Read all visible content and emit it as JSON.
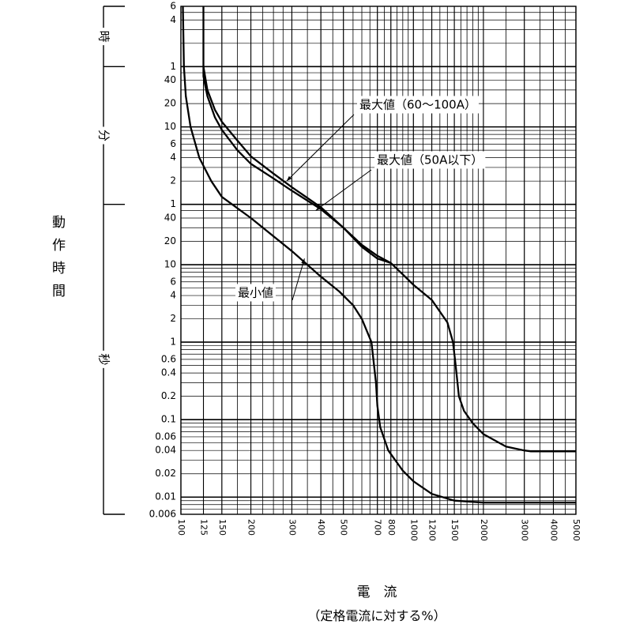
{
  "chart_data": {
    "type": "line",
    "y_axis_label": "動作時間",
    "x_axis_label": "電　流",
    "x_axis_sublabel": "（定格電流に対する%）",
    "x_scale": "log",
    "y_scale": "log",
    "xlim": [
      100,
      5000
    ],
    "ylim_seconds": [
      0.006,
      21600
    ],
    "grid": true,
    "x_ticks": [
      {
        "value": 100,
        "label": "100"
      },
      {
        "value": 125,
        "label": "125"
      },
      {
        "value": 150,
        "label": "150"
      },
      {
        "value": 200,
        "label": "200"
      },
      {
        "value": 300,
        "label": "300"
      },
      {
        "value": 400,
        "label": "400"
      },
      {
        "value": 500,
        "label": "500"
      },
      {
        "value": 700,
        "label": "700"
      },
      {
        "value": 800,
        "label": "800"
      },
      {
        "value": 1000,
        "label": "1000"
      },
      {
        "value": 1200,
        "label": "1200"
      },
      {
        "value": 1500,
        "label": "1500"
      },
      {
        "value": 2000,
        "label": "2000"
      },
      {
        "value": 3000,
        "label": "3000"
      },
      {
        "value": 4000,
        "label": "4000"
      },
      {
        "value": 5000,
        "label": "5000"
      }
    ],
    "y_ticks": [
      {
        "seconds": 21600,
        "label": "6"
      },
      {
        "seconds": 14400,
        "label": "4"
      },
      {
        "seconds": 3600,
        "label": "1"
      },
      {
        "seconds": 2400,
        "label": "40"
      },
      {
        "seconds": 1200,
        "label": "20"
      },
      {
        "seconds": 600,
        "label": "10"
      },
      {
        "seconds": 360,
        "label": "6"
      },
      {
        "seconds": 240,
        "label": "4"
      },
      {
        "seconds": 120,
        "label": "2"
      },
      {
        "seconds": 60,
        "label": "1"
      },
      {
        "seconds": 40,
        "label": "40"
      },
      {
        "seconds": 20,
        "label": "20"
      },
      {
        "seconds": 10,
        "label": "10"
      },
      {
        "seconds": 6,
        "label": "6"
      },
      {
        "seconds": 4,
        "label": "4"
      },
      {
        "seconds": 2,
        "label": "2"
      },
      {
        "seconds": 1,
        "label": "1"
      },
      {
        "seconds": 0.6,
        "label": "0.6"
      },
      {
        "seconds": 0.4,
        "label": "0.4"
      },
      {
        "seconds": 0.2,
        "label": "0.2"
      },
      {
        "seconds": 0.1,
        "label": "0.1"
      },
      {
        "seconds": 0.06,
        "label": "0.06"
      },
      {
        "seconds": 0.04,
        "label": "0.04"
      },
      {
        "seconds": 0.02,
        "label": "0.02"
      },
      {
        "seconds": 0.01,
        "label": "0.01"
      },
      {
        "seconds": 0.006,
        "label": "0.006"
      }
    ],
    "time_units": [
      {
        "label": "時",
        "from_seconds": 3600,
        "to_seconds": 21600
      },
      {
        "label": "分",
        "from_seconds": 60,
        "to_seconds": 3600
      },
      {
        "label": "秒",
        "from_seconds": 0.006,
        "to_seconds": 60
      }
    ],
    "series": [
      {
        "name": "最大値（60～100A）",
        "points": [
          [
            125,
            21600
          ],
          [
            125,
            14400
          ],
          [
            125,
            2700
          ],
          [
            130,
            1500
          ],
          [
            140,
            800
          ],
          [
            150,
            550
          ],
          [
            175,
            300
          ],
          [
            200,
            200
          ],
          [
            250,
            130
          ],
          [
            300,
            90
          ],
          [
            400,
            52
          ],
          [
            500,
            30
          ],
          [
            600,
            18
          ],
          [
            700,
            13
          ],
          [
            800,
            10.5
          ],
          [
            900,
            7.5
          ],
          [
            1000,
            5.5
          ],
          [
            1200,
            3.5
          ],
          [
            1400,
            1.8
          ],
          [
            1480,
            1
          ],
          [
            1520,
            0.5
          ],
          [
            1570,
            0.2
          ],
          [
            1650,
            0.13
          ],
          [
            1800,
            0.09
          ],
          [
            2000,
            0.065
          ],
          [
            2500,
            0.045
          ],
          [
            3000,
            0.04
          ],
          [
            3200,
            0.039
          ],
          [
            5000,
            0.039
          ]
        ]
      },
      {
        "name": "最大値（50A以下）",
        "points": [
          [
            125,
            3600
          ],
          [
            130,
            1800
          ],
          [
            140,
            1000
          ],
          [
            150,
            700
          ],
          [
            175,
            400
          ],
          [
            200,
            250
          ],
          [
            250,
            150
          ],
          [
            300,
            100
          ],
          [
            400,
            55
          ],
          [
            500,
            30
          ],
          [
            600,
            17
          ],
          [
            700,
            12
          ],
          [
            800,
            10.5
          ]
        ]
      },
      {
        "name": "最小値",
        "points": [
          [
            102,
            21600
          ],
          [
            103,
            3600
          ],
          [
            105,
            1500
          ],
          [
            110,
            600
          ],
          [
            120,
            240
          ],
          [
            135,
            120
          ],
          [
            150,
            75
          ],
          [
            200,
            40
          ],
          [
            300,
            15
          ],
          [
            400,
            7
          ],
          [
            480,
            4.5
          ],
          [
            550,
            3
          ],
          [
            600,
            2
          ],
          [
            660,
            1
          ],
          [
            690,
            0.3
          ],
          [
            700,
            0.15
          ],
          [
            720,
            0.08
          ],
          [
            780,
            0.04
          ],
          [
            900,
            0.022
          ],
          [
            1000,
            0.016
          ],
          [
            1200,
            0.011
          ],
          [
            1500,
            0.009
          ],
          [
            2000,
            0.0085
          ],
          [
            5000,
            0.0085
          ]
        ]
      }
    ],
    "annotations": [
      {
        "text": "最大値（60～100A）",
        "series": 0
      },
      {
        "text": "最大値（50A以下）",
        "series": 1
      },
      {
        "text": "最小値",
        "series": 2
      }
    ]
  }
}
